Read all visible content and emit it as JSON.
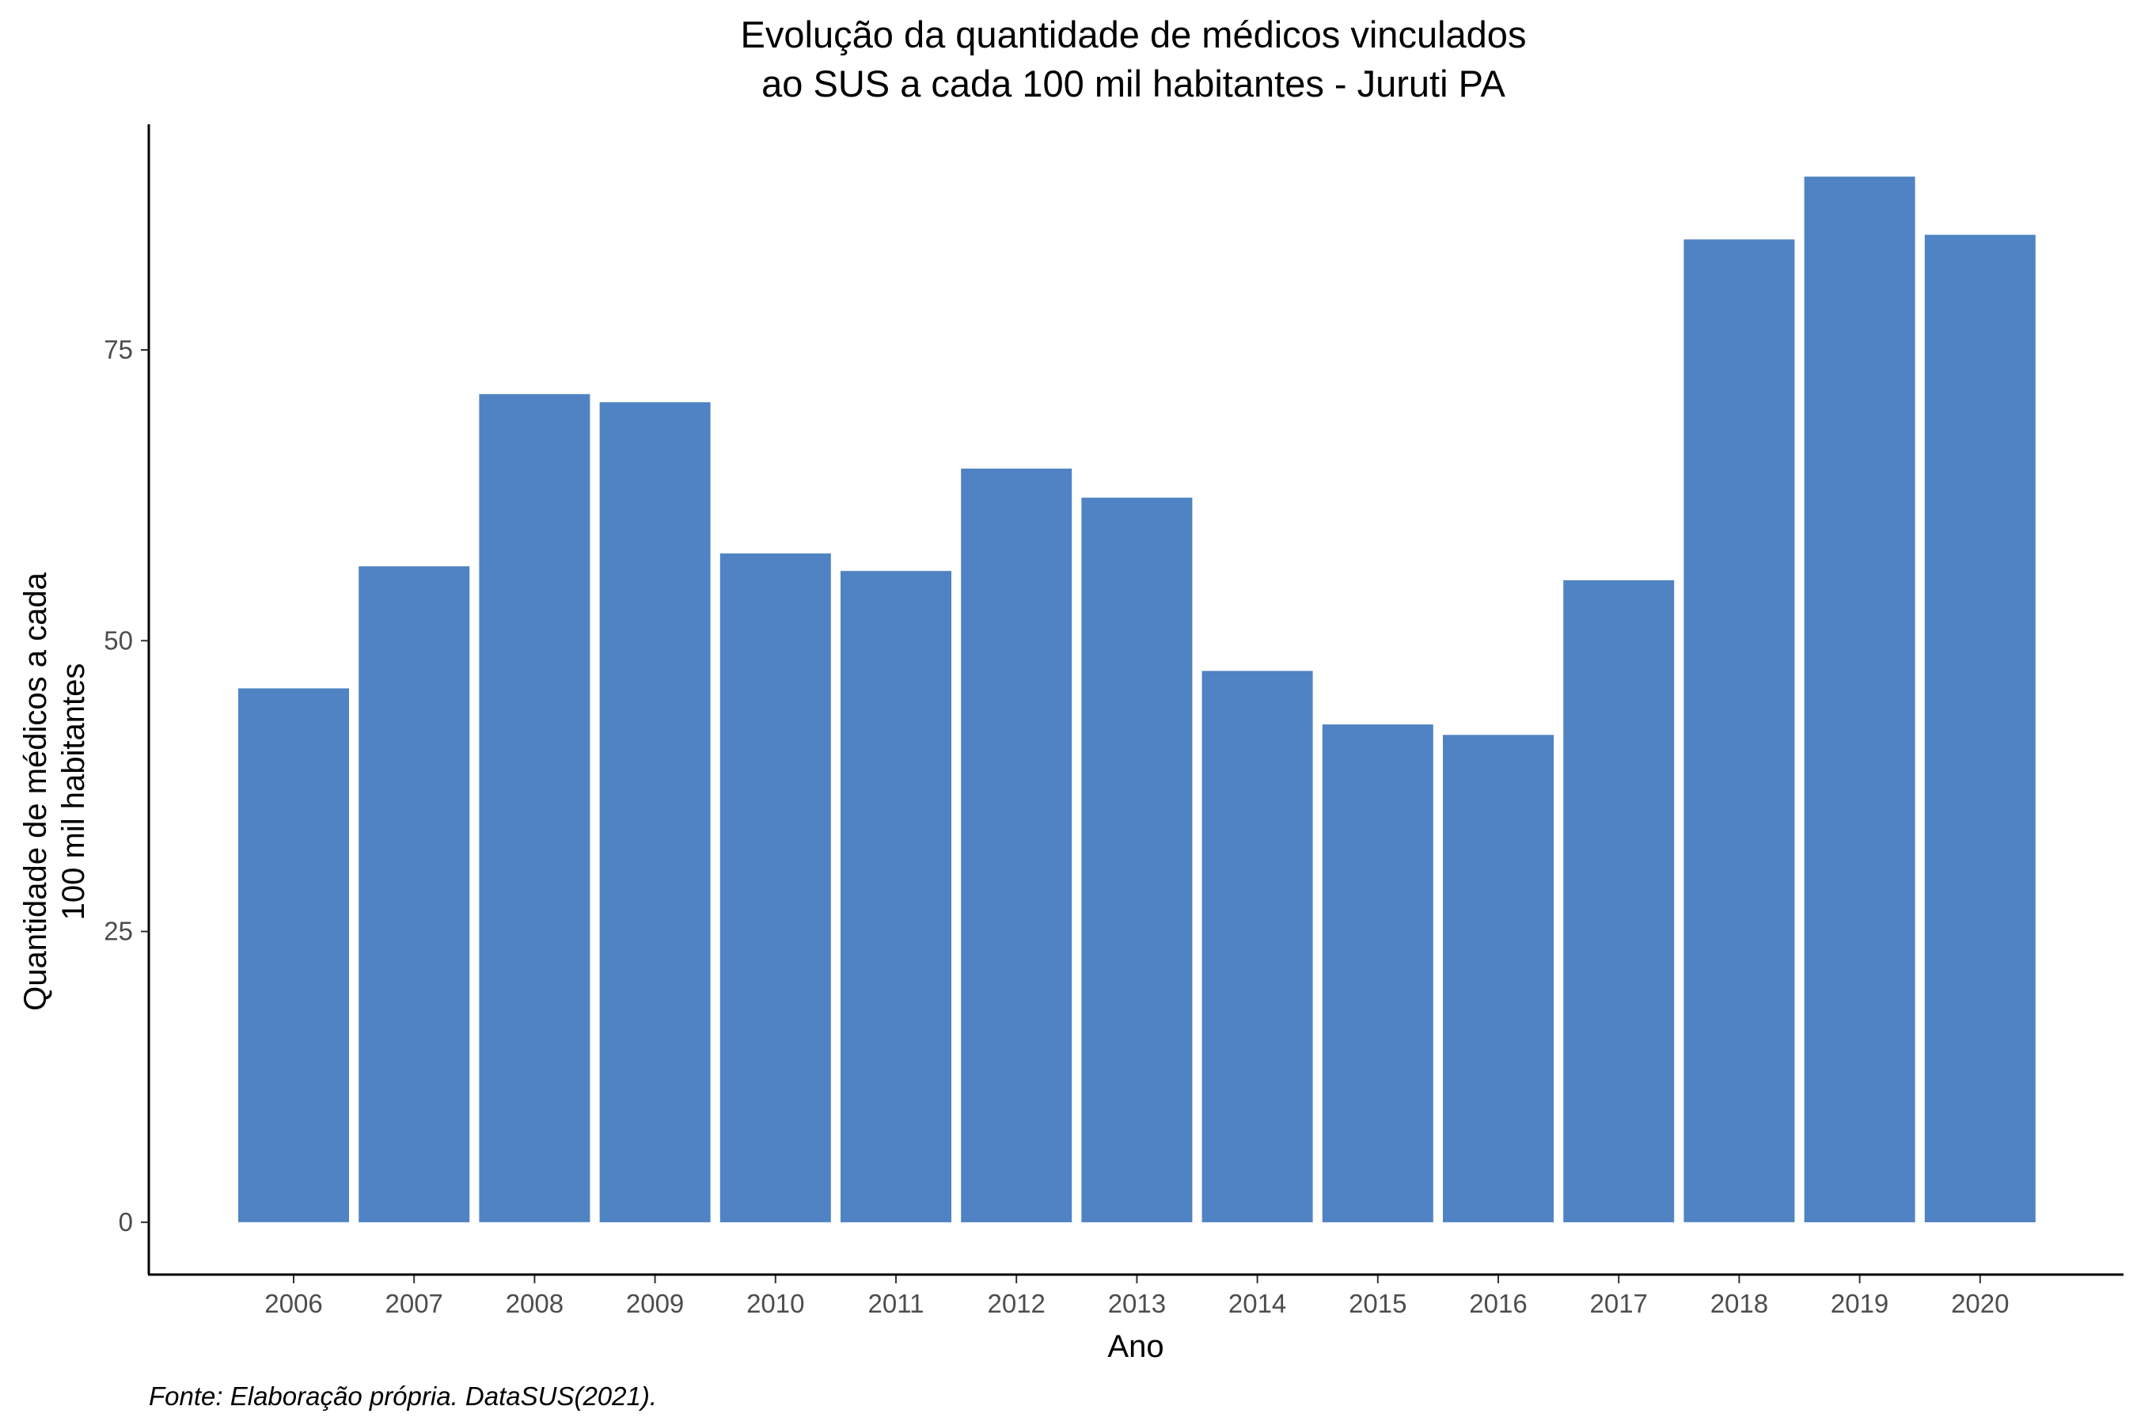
{
  "chart_data": {
    "type": "bar",
    "title_lines": [
      "Evolução da quantidade de médicos vinculados",
      "ao SUS a cada 100 mil habitantes - Juruti PA"
    ],
    "xlabel": "Ano",
    "ylabel_lines": [
      "Quantidade de médicos a cada",
      "100 mil habitantes"
    ],
    "caption": "Fonte: Elaboração própria. DataSUS(2021).",
    "categories": [
      "2006",
      "2007",
      "2008",
      "2009",
      "2010",
      "2011",
      "2012",
      "2013",
      "2014",
      "2015",
      "2016",
      "2017",
      "2018",
      "2019",
      "2020"
    ],
    "values": [
      45.9,
      56.4,
      71.2,
      70.5,
      57.5,
      56.0,
      64.8,
      62.3,
      47.4,
      42.8,
      41.9,
      55.2,
      84.5,
      89.9,
      84.9
    ],
    "yticks": [
      0,
      25,
      50,
      75
    ],
    "ylim": [
      -4.5,
      94.4
    ],
    "bar_color": "#4f83c3",
    "grid": false,
    "legend": "none"
  }
}
